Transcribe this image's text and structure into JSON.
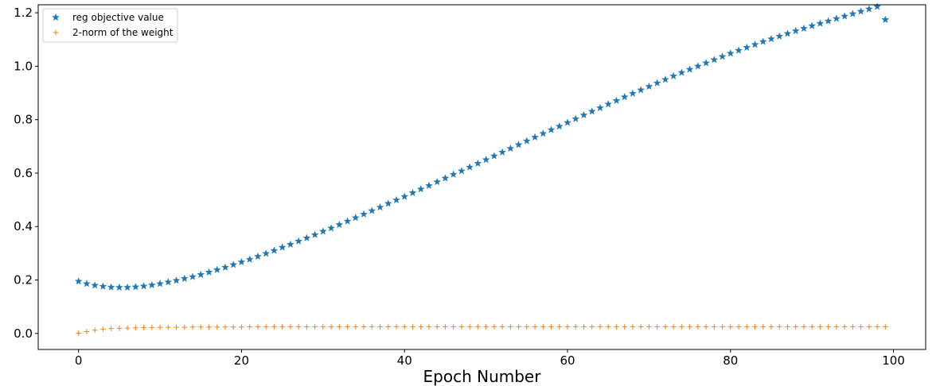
{
  "chart_data": {
    "type": "scatter",
    "title": "",
    "xlabel": "Epoch Number",
    "ylabel": "",
    "xlim": [
      -4.95,
      103.95
    ],
    "ylim": [
      -0.06,
      1.23
    ],
    "xticks": [
      0,
      20,
      40,
      60,
      80,
      100
    ],
    "xtick_labels": [
      "0",
      "20",
      "40",
      "60",
      "80",
      "100"
    ],
    "yticks": [
      0.0,
      0.2,
      0.4,
      0.6,
      0.8,
      1.0,
      1.2
    ],
    "ytick_labels": [
      "0.0",
      "0.2",
      "0.4",
      "0.6",
      "0.8",
      "1.0",
      "1.2"
    ],
    "grid": false,
    "legend": "top-left",
    "x": [
      0,
      1,
      2,
      3,
      4,
      5,
      6,
      7,
      8,
      9,
      10,
      11,
      12,
      13,
      14,
      15,
      16,
      17,
      18,
      19,
      20,
      21,
      22,
      23,
      24,
      25,
      26,
      27,
      28,
      29,
      30,
      31,
      32,
      33,
      34,
      35,
      36,
      37,
      38,
      39,
      40,
      41,
      42,
      43,
      44,
      45,
      46,
      47,
      48,
      49,
      50,
      51,
      52,
      53,
      54,
      55,
      56,
      57,
      58,
      59,
      60,
      61,
      62,
      63,
      64,
      65,
      66,
      67,
      68,
      69,
      70,
      71,
      72,
      73,
      74,
      75,
      76,
      77,
      78,
      79,
      80,
      81,
      82,
      83,
      84,
      85,
      86,
      87,
      88,
      89,
      90,
      91,
      92,
      93,
      94,
      95,
      96,
      97,
      98,
      99
    ],
    "series": [
      {
        "name": "reg objective value",
        "marker": "star",
        "color": "#1f77b4",
        "values": [
          0.195,
          0.186,
          0.18,
          0.176,
          0.173,
          0.172,
          0.172,
          0.174,
          0.177,
          0.181,
          0.186,
          0.192,
          0.198,
          0.205,
          0.212,
          0.22,
          0.229,
          0.238,
          0.247,
          0.257,
          0.267,
          0.277,
          0.288,
          0.299,
          0.31,
          0.322,
          0.333,
          0.345,
          0.357,
          0.369,
          0.382,
          0.394,
          0.407,
          0.42,
          0.433,
          0.446,
          0.459,
          0.472,
          0.486,
          0.499,
          0.512,
          0.526,
          0.54,
          0.553,
          0.567,
          0.581,
          0.595,
          0.608,
          0.622,
          0.636,
          0.65,
          0.664,
          0.678,
          0.692,
          0.706,
          0.72,
          0.734,
          0.748,
          0.762,
          0.775,
          0.789,
          0.803,
          0.817,
          0.831,
          0.844,
          0.858,
          0.871,
          0.885,
          0.898,
          0.911,
          0.924,
          0.937,
          0.95,
          0.963,
          0.976,
          0.988,
          1.0,
          1.012,
          1.024,
          1.036,
          1.048,
          1.059,
          1.07,
          1.081,
          1.092,
          1.102,
          1.112,
          1.122,
          1.132,
          1.141,
          1.151,
          1.16,
          1.169,
          1.178,
          1.187,
          1.196,
          1.205,
          1.214,
          1.223,
          1.174
        ]
      },
      {
        "name": "2-norm of the weight",
        "marker": "plus",
        "color": "#ff7f0e",
        "values": [
          0.001,
          0.007,
          0.012,
          0.016,
          0.018,
          0.019,
          0.02,
          0.021,
          0.022,
          0.022,
          0.023,
          0.023,
          0.023,
          0.023,
          0.024,
          0.024,
          0.024,
          0.024,
          0.024,
          0.024,
          0.024,
          0.025,
          0.025,
          0.025,
          0.025,
          0.025,
          0.025,
          0.025,
          0.025,
          0.025,
          0.025,
          0.025,
          0.025,
          0.025,
          0.025,
          0.025,
          0.025,
          0.025,
          0.025,
          0.025,
          0.025,
          0.025,
          0.025,
          0.025,
          0.025,
          0.025,
          0.025,
          0.025,
          0.025,
          0.025,
          0.025,
          0.025,
          0.025,
          0.025,
          0.025,
          0.025,
          0.025,
          0.025,
          0.025,
          0.025,
          0.025,
          0.025,
          0.025,
          0.025,
          0.025,
          0.025,
          0.025,
          0.025,
          0.025,
          0.025,
          0.025,
          0.025,
          0.025,
          0.025,
          0.025,
          0.025,
          0.025,
          0.025,
          0.025,
          0.025,
          0.025,
          0.025,
          0.025,
          0.025,
          0.025,
          0.025,
          0.025,
          0.025,
          0.025,
          0.025,
          0.025,
          0.025,
          0.025,
          0.025,
          0.025,
          0.025,
          0.025,
          0.025,
          0.025,
          0.025
        ]
      }
    ]
  }
}
